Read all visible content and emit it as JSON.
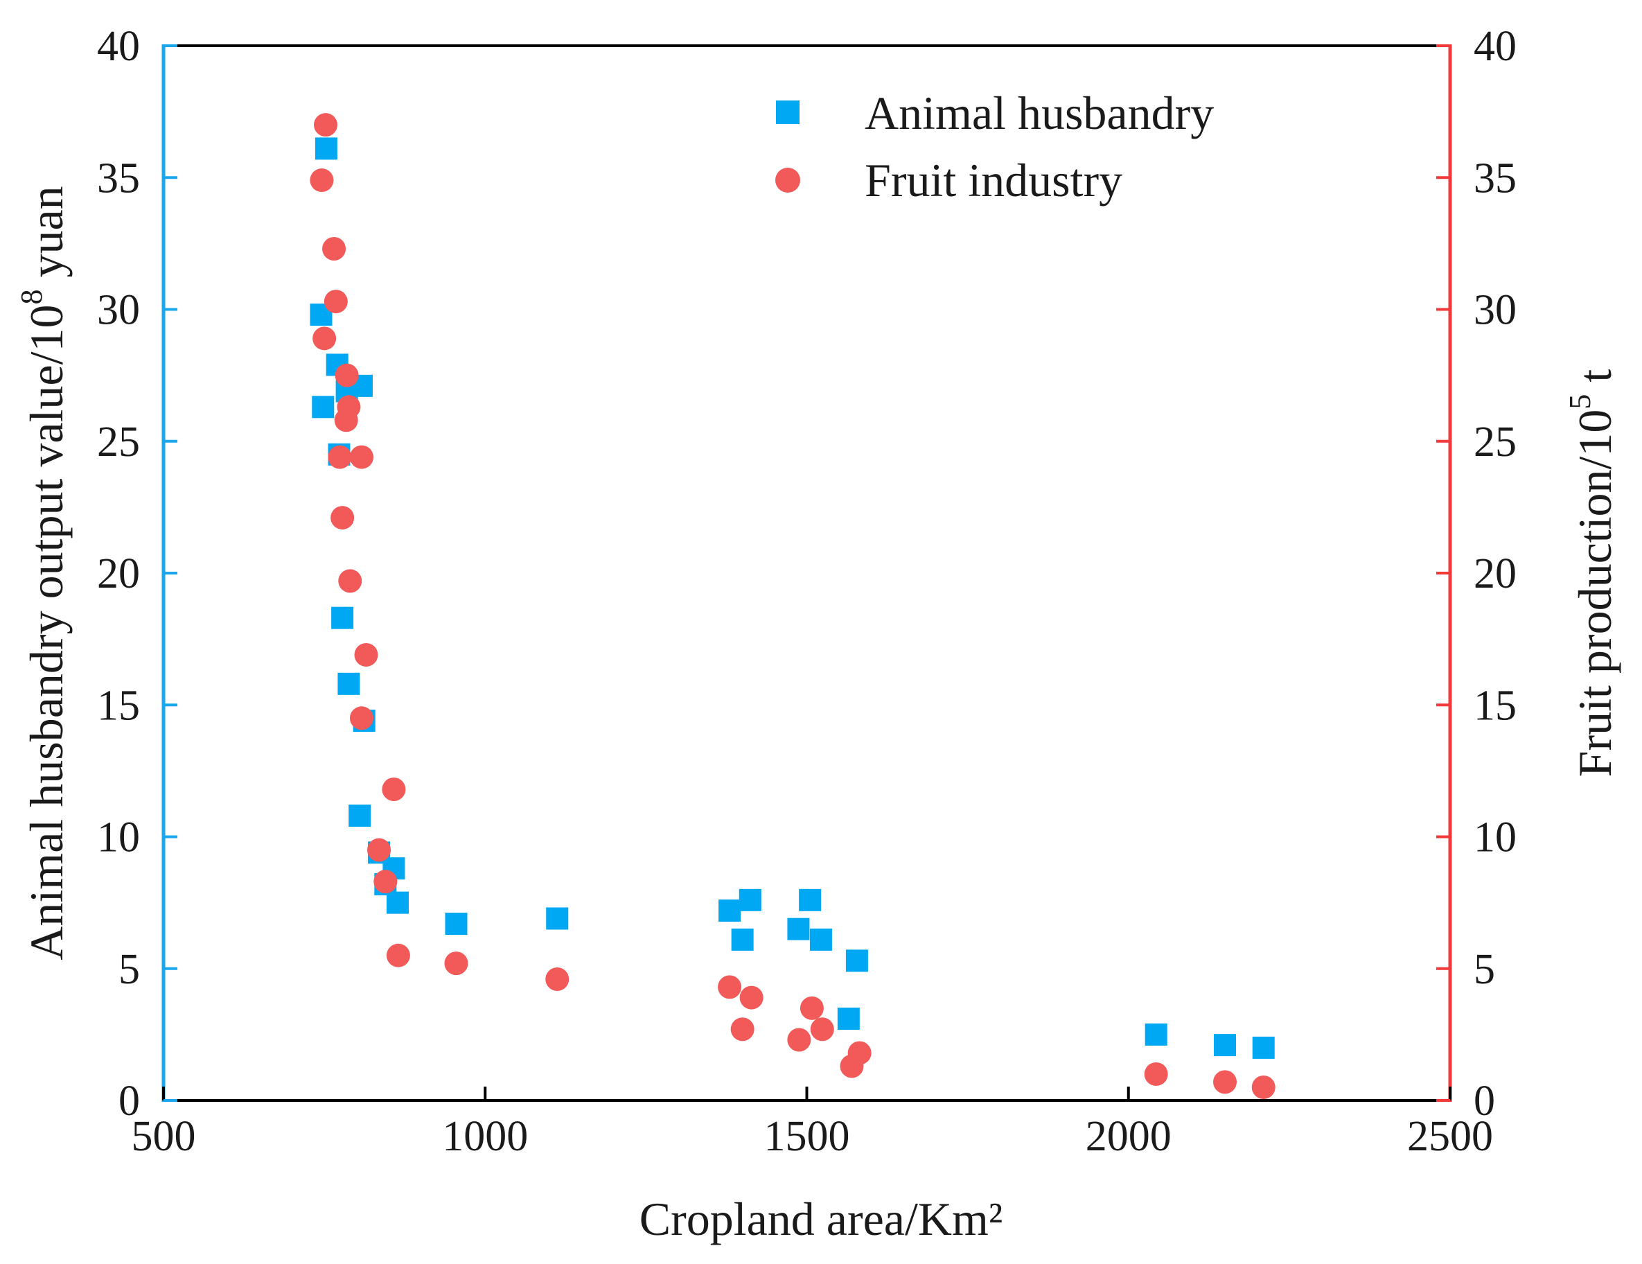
{
  "chart_data": {
    "type": "scatter",
    "xlabel": "Cropland area/Km²",
    "ylabel_left": {
      "base": "Animal husbandry output value/10",
      "sup": "8",
      "tail": " yuan"
    },
    "ylabel_right": {
      "base": "Fruit production/10",
      "sup": "5",
      "tail": " t"
    },
    "xlim": [
      500,
      2500
    ],
    "ylim": [
      0,
      40
    ],
    "x_ticks": [
      "500",
      "1000",
      "1500",
      "2000",
      "2500"
    ],
    "y_ticks": [
      "0",
      "5",
      "10",
      "15",
      "20",
      "25",
      "30",
      "35",
      "40"
    ],
    "colors": {
      "left_axis": "#1aa7ec",
      "right_axis": "#f23a3a",
      "frame": "#000000"
    },
    "legend_position": "top-right",
    "series": [
      {
        "name": "Animal husbandry",
        "marker": "square",
        "color": "#00a8f3",
        "points": [
          [
            753,
            36.1
          ],
          [
            745,
            29.8
          ],
          [
            748,
            26.3
          ],
          [
            770,
            27.9
          ],
          [
            773,
            24.5
          ],
          [
            785,
            26.9
          ],
          [
            808,
            27.1
          ],
          [
            778,
            18.3
          ],
          [
            788,
            15.8
          ],
          [
            812,
            14.4
          ],
          [
            805,
            10.8
          ],
          [
            835,
            9.4
          ],
          [
            845,
            8.2
          ],
          [
            858,
            8.8
          ],
          [
            864,
            7.5
          ],
          [
            955,
            6.7
          ],
          [
            1112,
            6.9
          ],
          [
            1380,
            7.2
          ],
          [
            1412,
            7.6
          ],
          [
            1400,
            6.1
          ],
          [
            1505,
            7.6
          ],
          [
            1487,
            6.5
          ],
          [
            1522,
            6.1
          ],
          [
            1578,
            5.3
          ],
          [
            1565,
            3.1
          ],
          [
            2043,
            2.5
          ],
          [
            2150,
            2.1
          ],
          [
            2210,
            2.0
          ]
        ]
      },
      {
        "name": "Fruit industry",
        "marker": "circle",
        "color": "#f25a5a",
        "points": [
          [
            752,
            37.0
          ],
          [
            746,
            34.9
          ],
          [
            765,
            32.3
          ],
          [
            768,
            30.3
          ],
          [
            750,
            28.9
          ],
          [
            785,
            27.5
          ],
          [
            788,
            26.3
          ],
          [
            784,
            25.8
          ],
          [
            808,
            24.4
          ],
          [
            774,
            24.4
          ],
          [
            778,
            22.1
          ],
          [
            790,
            19.7
          ],
          [
            815,
            16.9
          ],
          [
            808,
            14.5
          ],
          [
            858,
            11.8
          ],
          [
            835,
            9.5
          ],
          [
            845,
            8.3
          ],
          [
            865,
            5.5
          ],
          [
            955,
            5.2
          ],
          [
            1112,
            4.6
          ],
          [
            1380,
            4.3
          ],
          [
            1414,
            3.9
          ],
          [
            1508,
            3.5
          ],
          [
            1400,
            2.7
          ],
          [
            1524,
            2.7
          ],
          [
            1488,
            2.3
          ],
          [
            1582,
            1.8
          ],
          [
            1570,
            1.3
          ],
          [
            2043,
            1.0
          ],
          [
            2150,
            0.7
          ],
          [
            2210,
            0.5
          ]
        ]
      }
    ]
  }
}
